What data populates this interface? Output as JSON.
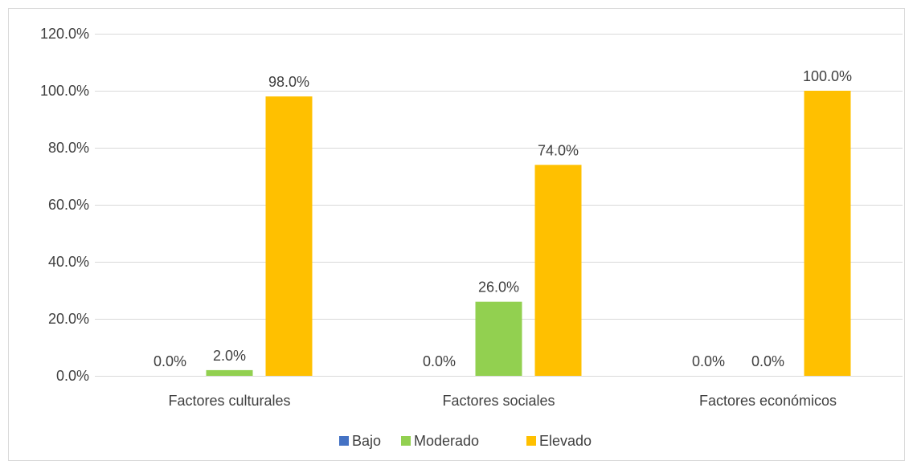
{
  "chart_data": {
    "type": "bar",
    "title": "",
    "xlabel": "",
    "ylabel": "",
    "ylim": [
      0,
      120
    ],
    "yticks": [
      0,
      20,
      40,
      60,
      80,
      100,
      120
    ],
    "ytick_labels": [
      "0.0%",
      "20.0%",
      "40.0%",
      "60.0%",
      "80.0%",
      "100.0%",
      "120.0%"
    ],
    "grid": true,
    "legend_position": "bottom",
    "categories": [
      "Factores culturales",
      "Factores sociales",
      "Factores económicos"
    ],
    "series": [
      {
        "name": "Bajo",
        "color": "#4472C4",
        "values": [
          0,
          0,
          0
        ],
        "labels": [
          "0.0%",
          "0.0%",
          "0.0%"
        ]
      },
      {
        "name": "Moderado",
        "color": "#92D050",
        "values": [
          2,
          26,
          0
        ],
        "labels": [
          "2.0%",
          "26.0%",
          "0.0%"
        ]
      },
      {
        "name": "Elevado",
        "color": "#FFC000",
        "values": [
          98,
          74,
          100
        ],
        "labels": [
          "98.0%",
          "74.0%",
          "100.0%"
        ]
      }
    ]
  }
}
